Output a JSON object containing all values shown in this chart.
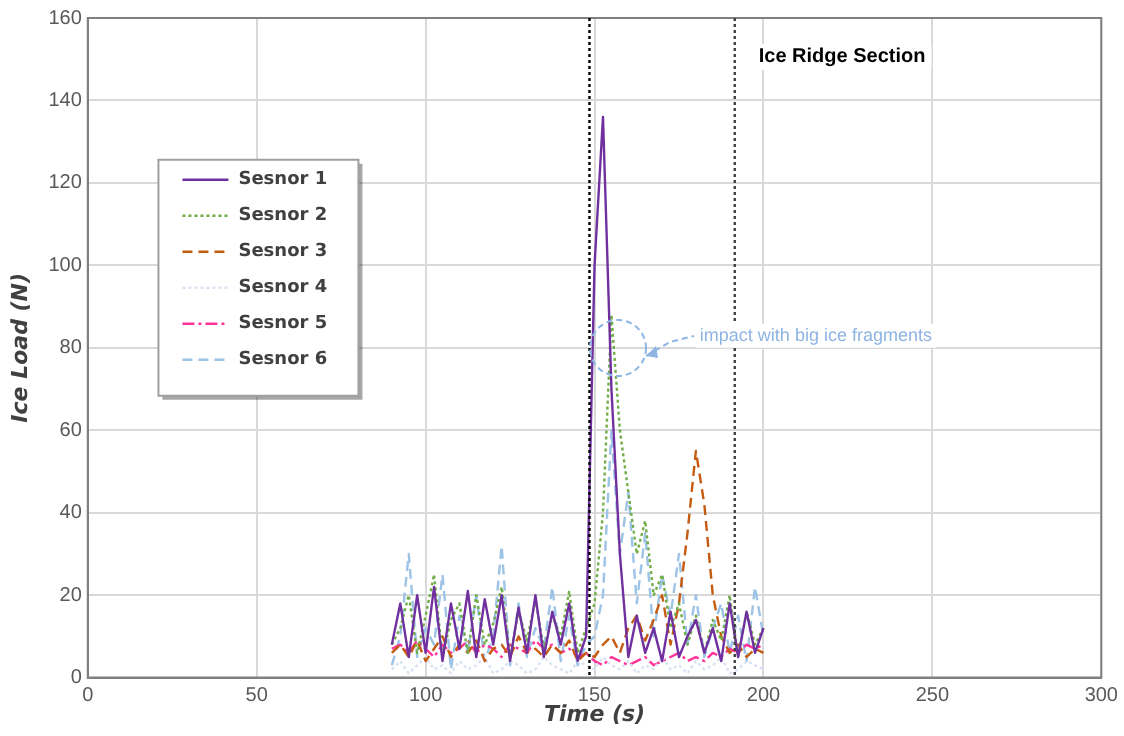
{
  "chart_data": {
    "type": "line",
    "xlabel": "Time (s)",
    "ylabel": "Ice Load (N)",
    "xlim": [
      0,
      300
    ],
    "xticks": [
      0,
      50,
      100,
      150,
      200,
      250,
      300
    ],
    "ylim": [
      0,
      160
    ],
    "yticks": [
      0,
      20,
      40,
      60,
      80,
      100,
      120,
      140,
      160
    ],
    "grid": true,
    "legend": "left",
    "marker": "none",
    "x": [
      90,
      92.5,
      95,
      97.5,
      100,
      102.5,
      105,
      107.5,
      110,
      112.5,
      115,
      117.5,
      120,
      122.5,
      125,
      127.5,
      130,
      132.5,
      135,
      137.5,
      140,
      142.5,
      145,
      147.5,
      150,
      152.5,
      155,
      157.5,
      160,
      162.5,
      165,
      167.5,
      170,
      172.5,
      175,
      177.5,
      180,
      182.5,
      185,
      187.5,
      190,
      192.5,
      195,
      197.5,
      200
    ],
    "series": [
      {
        "name": "Sesnor 1",
        "color": "#7030a0",
        "line_style": "solid",
        "values": [
          8,
          18,
          5,
          20,
          6,
          22,
          4,
          18,
          7,
          21,
          5,
          19,
          8,
          20,
          4,
          17,
          6,
          20,
          5,
          16,
          8,
          18,
          4,
          10,
          100,
          136,
          70,
          30,
          5,
          15,
          6,
          12,
          4,
          16,
          5,
          10,
          14,
          6,
          12,
          4,
          18,
          5,
          16,
          6,
          12
        ]
      },
      {
        "name": "Sesnor 2",
        "color": "#70ad47",
        "line_style": "dotted",
        "values": [
          8,
          12,
          20,
          6,
          15,
          25,
          5,
          14,
          18,
          6,
          20,
          8,
          13,
          22,
          5,
          16,
          9,
          19,
          7,
          15,
          10,
          21,
          6,
          12,
          18,
          40,
          88,
          60,
          45,
          30,
          38,
          20,
          25,
          12,
          18,
          8,
          15,
          6,
          14,
          9,
          20,
          5,
          16,
          8,
          12
        ]
      },
      {
        "name": "Sesnor 3",
        "color": "#c55a11",
        "line_style": "dashed",
        "values": [
          6,
          8,
          5,
          9,
          4,
          7,
          10,
          5,
          8,
          6,
          9,
          4,
          7,
          8,
          5,
          10,
          6,
          7,
          5,
          8,
          6,
          9,
          4,
          6,
          5,
          8,
          10,
          6,
          12,
          15,
          9,
          14,
          20,
          8,
          18,
          35,
          55,
          42,
          20,
          10,
          6,
          8,
          5,
          7,
          6
        ]
      },
      {
        "name": "Sesnor 4",
        "color": "#dae3f3",
        "line_style": "dotted",
        "values": [
          2,
          4,
          1,
          3,
          5,
          2,
          3,
          1,
          4,
          2,
          3,
          5,
          1,
          2,
          4,
          3,
          1,
          2,
          5,
          3,
          2,
          1,
          4,
          3,
          2,
          5,
          3,
          2,
          4,
          1,
          3,
          2,
          5,
          2,
          3,
          1,
          4,
          2,
          3,
          5,
          1,
          2,
          4,
          3,
          2
        ]
      },
      {
        "name": "Sesnor 5",
        "color": "#ff3399",
        "line_style": "dashdot",
        "values": [
          7,
          8,
          6,
          9,
          7,
          5,
          8,
          6,
          7,
          9,
          6,
          8,
          7,
          5,
          8,
          7,
          6,
          9,
          7,
          8,
          6,
          7,
          5,
          6,
          4,
          3,
          5,
          4,
          3,
          4,
          5,
          3,
          4,
          5,
          6,
          4,
          5,
          4,
          6,
          5,
          7,
          6,
          8,
          7,
          8
        ]
      },
      {
        "name": "Sesnor 6",
        "color": "#9dc3e6",
        "line_style": "dashed",
        "values": [
          3,
          10,
          30,
          5,
          12,
          8,
          25,
          2,
          15,
          6,
          20,
          4,
          10,
          32,
          3,
          18,
          5,
          12,
          7,
          22,
          4,
          15,
          3,
          8,
          10,
          20,
          60,
          30,
          45,
          18,
          35,
          10,
          25,
          15,
          30,
          8,
          20,
          5,
          12,
          18,
          6,
          15,
          4,
          22,
          10
        ]
      }
    ],
    "ref_lines": [
      {
        "axis": "x",
        "value": 148.5,
        "color": "#000000",
        "line_style": "dotted"
      },
      {
        "axis": "x",
        "value": 191.5,
        "label": "Ice Ridge Section",
        "color": "#404040",
        "line_style": "dotted"
      }
    ],
    "annotations": [
      "impact with big ice fragments"
    ]
  }
}
